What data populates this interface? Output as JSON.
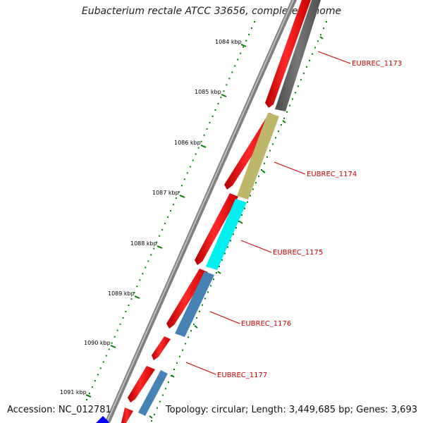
{
  "title": "Eubacterium rectale ATCC 33656, complete genome",
  "footer": {
    "accession": "Accession: NC_012781",
    "summary": "Topology: circular; Length: 3,449,685 bp; Genes: 3,693"
  },
  "ticks": [
    "1084 kbp",
    "1085 kbp",
    "1086 kbp",
    "1087 kbp",
    "1088 kbp",
    "1089 kbp",
    "1090 kbp",
    "1091 kbp"
  ],
  "gene_labels": [
    "EUBREC_1173",
    "EUBREC_1174",
    "EUBREC_1175",
    "EUBREC_1176",
    "EUBREC_1177"
  ],
  "colors": {
    "outer_track": "#8a8a8a",
    "red": "#ff0000",
    "gray": "#666666",
    "khaki": "#bdb76b",
    "cyan": "#00ffff",
    "steel": "#4682b4",
    "blue": "#0000ff",
    "ticks": "#008000",
    "label": "#cc0000"
  }
}
